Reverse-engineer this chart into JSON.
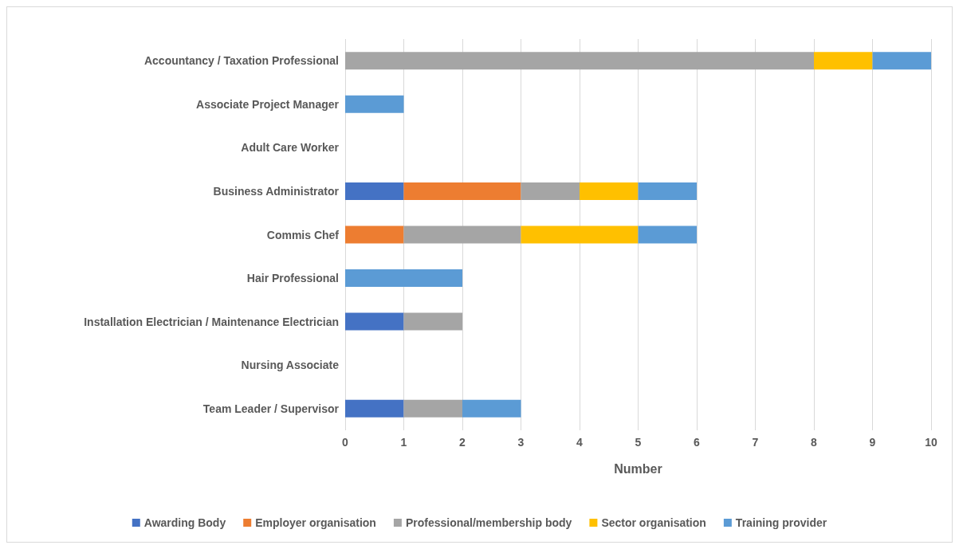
{
  "chart_data": {
    "type": "bar",
    "orientation": "horizontal",
    "stacked": true,
    "xlabel": "Number",
    "categories": [
      "Accountancy / Taxation Professional",
      "Associate Project Manager",
      "Adult Care Worker",
      "Business Administrator",
      "Commis Chef",
      "Hair Professional",
      "Installation Electrician / Maintenance Electrician",
      "Nursing Associate",
      "Team Leader / Supervisor"
    ],
    "series": [
      {
        "name": "Awarding Body",
        "color": "#4472c4",
        "values": [
          0,
          0,
          0,
          1,
          0,
          0,
          1,
          0,
          1
        ]
      },
      {
        "name": "Employer organisation",
        "color": "#ed7d31",
        "values": [
          0,
          0,
          0,
          2,
          1,
          0,
          0,
          0,
          0
        ]
      },
      {
        "name": "Professional/membership body",
        "color": "#a5a5a5",
        "values": [
          8,
          0,
          0,
          1,
          2,
          0,
          1,
          0,
          1
        ]
      },
      {
        "name": "Sector organisation",
        "color": "#ffc000",
        "values": [
          1,
          0,
          0,
          1,
          2,
          0,
          0,
          0,
          0
        ]
      },
      {
        "name": "Training provider",
        "color": "#5b9bd5",
        "values": [
          1,
          1,
          0,
          1,
          1,
          2,
          0,
          0,
          1
        ]
      }
    ],
    "xlim": [
      0,
      10
    ],
    "xticks": [
      0,
      1,
      2,
      3,
      4,
      5,
      6,
      7,
      8,
      9,
      10
    ],
    "grid": "x",
    "legend": "bottom"
  }
}
